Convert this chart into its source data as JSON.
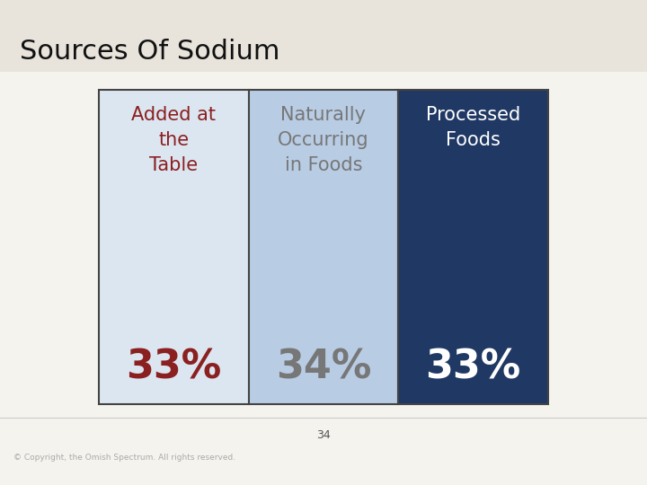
{
  "title": "Sources Of Sodium",
  "title_fontsize": 22,
  "title_color": "#111111",
  "title_fontweight": "normal",
  "background_color": "#f0ede8",
  "columns": [
    {
      "label_lines": [
        "Added at",
        "the",
        "Table"
      ],
      "value": "33%",
      "bg_color": "#dce6f1",
      "label_color": "#8B2020",
      "value_color": "#8B2020"
    },
    {
      "label_lines": [
        "Naturally",
        "Occurring",
        "in Foods"
      ],
      "value": "34%",
      "bg_color": "#b8cce4",
      "label_color": "#777777",
      "value_color": "#777777"
    },
    {
      "label_lines": [
        "Processed",
        "Foods"
      ],
      "value": "33%",
      "bg_color": "#1f3864",
      "label_color": "#ffffff",
      "value_color": "#ffffff"
    }
  ],
  "border_color": "#444444",
  "border_linewidth": 1.5,
  "label_fontsize": 15,
  "value_fontsize": 32,
  "footer_text": "© Copyright, the Omish Spectrum. All rights reserved.",
  "page_number": "34"
}
